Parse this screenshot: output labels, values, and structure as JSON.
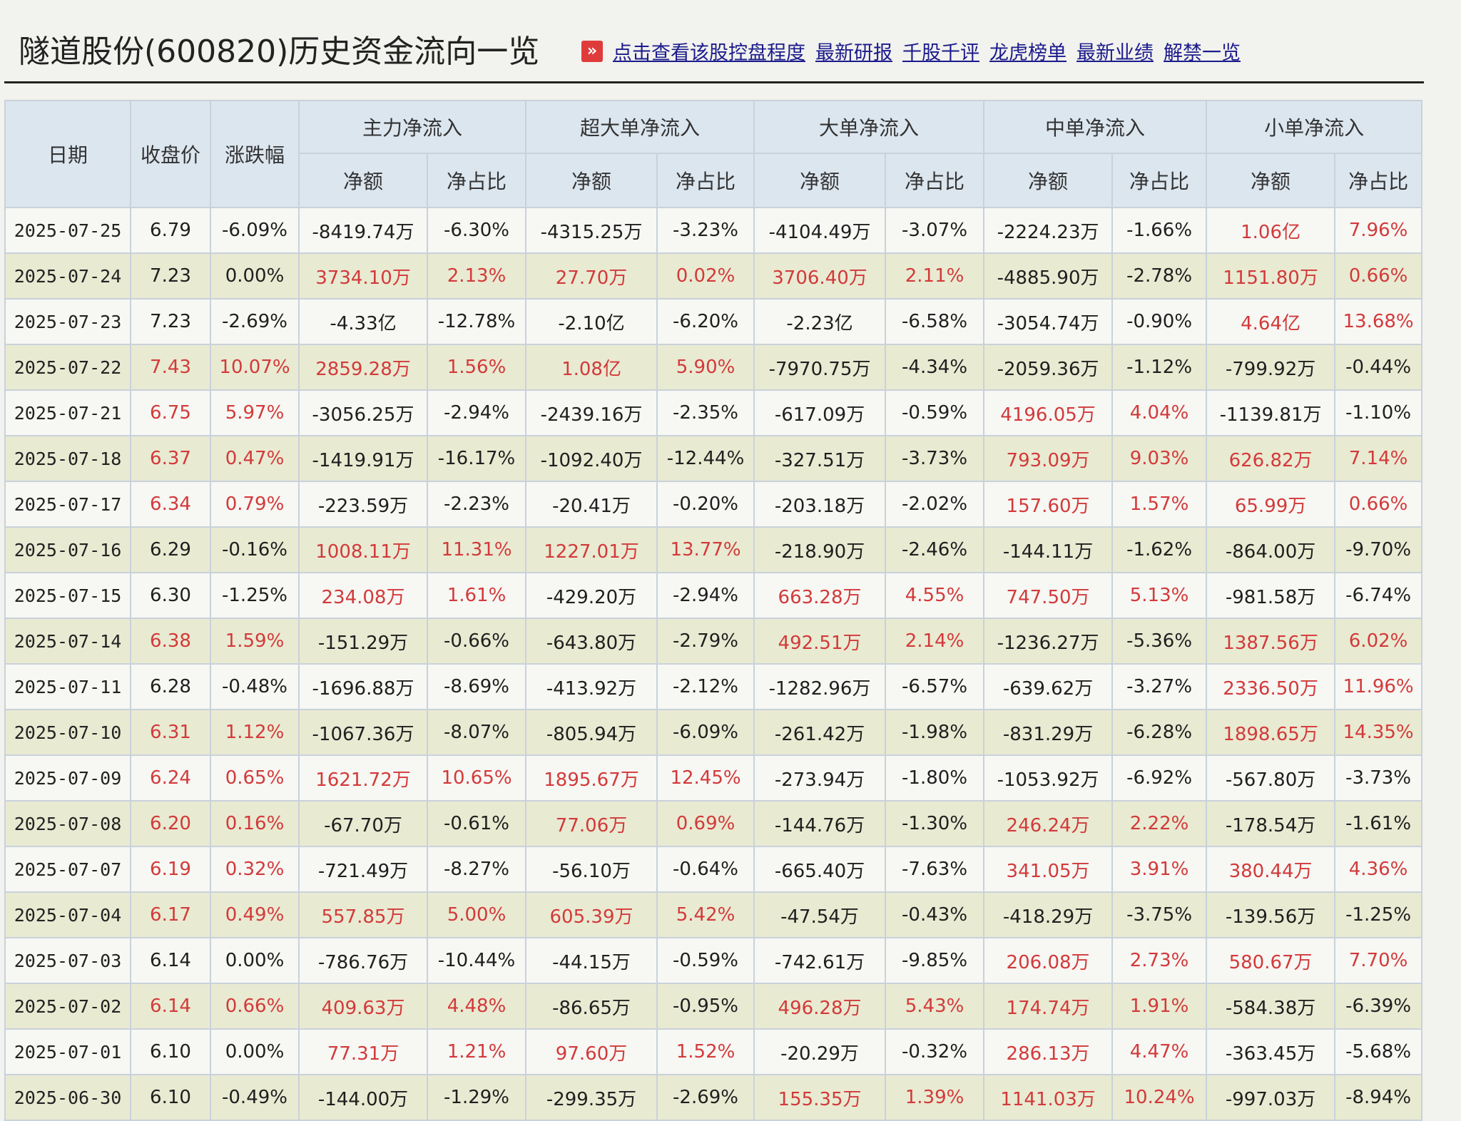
{
  "header": {
    "title": "隧道股份(600820)历史资金流向一览",
    "links": [
      "点击查看该股控盘程度",
      "最新研报",
      "千股千评",
      "龙虎榜单",
      "最新业绩",
      "解禁一览"
    ]
  },
  "table": {
    "group_headers": [
      "日期",
      "收盘价",
      "涨跌幅",
      "主力净流入",
      "超大单净流入",
      "大单净流入",
      "中单净流入",
      "小单净流入"
    ],
    "sub_headers": [
      "净额",
      "净占比",
      "净额",
      "净占比",
      "净额",
      "净占比",
      "净额",
      "净占比",
      "净额",
      "净占比"
    ],
    "colors": {
      "positive": "#d23a3a",
      "negative": "#1f1f1f"
    },
    "rows": [
      [
        "2025-07-25",
        "6.79",
        "-6.09%",
        "-8419.74万",
        "-6.30%",
        "-4315.25万",
        "-3.23%",
        "-4104.49万",
        "-3.07%",
        "-2224.23万",
        "-1.66%",
        "1.06亿",
        "7.96%"
      ],
      [
        "2025-07-24",
        "7.23",
        "0.00%",
        "3734.10万",
        "2.13%",
        "27.70万",
        "0.02%",
        "3706.40万",
        "2.11%",
        "-4885.90万",
        "-2.78%",
        "1151.80万",
        "0.66%"
      ],
      [
        "2025-07-23",
        "7.23",
        "-2.69%",
        "-4.33亿",
        "-12.78%",
        "-2.10亿",
        "-6.20%",
        "-2.23亿",
        "-6.58%",
        "-3054.74万",
        "-0.90%",
        "4.64亿",
        "13.68%"
      ],
      [
        "2025-07-22",
        "7.43",
        "10.07%",
        "2859.28万",
        "1.56%",
        "1.08亿",
        "5.90%",
        "-7970.75万",
        "-4.34%",
        "-2059.36万",
        "-1.12%",
        "-799.92万",
        "-0.44%"
      ],
      [
        "2025-07-21",
        "6.75",
        "5.97%",
        "-3056.25万",
        "-2.94%",
        "-2439.16万",
        "-2.35%",
        "-617.09万",
        "-0.59%",
        "4196.05万",
        "4.04%",
        "-1139.81万",
        "-1.10%"
      ],
      [
        "2025-07-18",
        "6.37",
        "0.47%",
        "-1419.91万",
        "-16.17%",
        "-1092.40万",
        "-12.44%",
        "-327.51万",
        "-3.73%",
        "793.09万",
        "9.03%",
        "626.82万",
        "7.14%"
      ],
      [
        "2025-07-17",
        "6.34",
        "0.79%",
        "-223.59万",
        "-2.23%",
        "-20.41万",
        "-0.20%",
        "-203.18万",
        "-2.02%",
        "157.60万",
        "1.57%",
        "65.99万",
        "0.66%"
      ],
      [
        "2025-07-16",
        "6.29",
        "-0.16%",
        "1008.11万",
        "11.31%",
        "1227.01万",
        "13.77%",
        "-218.90万",
        "-2.46%",
        "-144.11万",
        "-1.62%",
        "-864.00万",
        "-9.70%"
      ],
      [
        "2025-07-15",
        "6.30",
        "-1.25%",
        "234.08万",
        "1.61%",
        "-429.20万",
        "-2.94%",
        "663.28万",
        "4.55%",
        "747.50万",
        "5.13%",
        "-981.58万",
        "-6.74%"
      ],
      [
        "2025-07-14",
        "6.38",
        "1.59%",
        "-151.29万",
        "-0.66%",
        "-643.80万",
        "-2.79%",
        "492.51万",
        "2.14%",
        "-1236.27万",
        "-5.36%",
        "1387.56万",
        "6.02%"
      ],
      [
        "2025-07-11",
        "6.28",
        "-0.48%",
        "-1696.88万",
        "-8.69%",
        "-413.92万",
        "-2.12%",
        "-1282.96万",
        "-6.57%",
        "-639.62万",
        "-3.27%",
        "2336.50万",
        "11.96%"
      ],
      [
        "2025-07-10",
        "6.31",
        "1.12%",
        "-1067.36万",
        "-8.07%",
        "-805.94万",
        "-6.09%",
        "-261.42万",
        "-1.98%",
        "-831.29万",
        "-6.28%",
        "1898.65万",
        "14.35%"
      ],
      [
        "2025-07-09",
        "6.24",
        "0.65%",
        "1621.72万",
        "10.65%",
        "1895.67万",
        "12.45%",
        "-273.94万",
        "-1.80%",
        "-1053.92万",
        "-6.92%",
        "-567.80万",
        "-3.73%"
      ],
      [
        "2025-07-08",
        "6.20",
        "0.16%",
        "-67.70万",
        "-0.61%",
        "77.06万",
        "0.69%",
        "-144.76万",
        "-1.30%",
        "246.24万",
        "2.22%",
        "-178.54万",
        "-1.61%"
      ],
      [
        "2025-07-07",
        "6.19",
        "0.32%",
        "-721.49万",
        "-8.27%",
        "-56.10万",
        "-0.64%",
        "-665.40万",
        "-7.63%",
        "341.05万",
        "3.91%",
        "380.44万",
        "4.36%"
      ],
      [
        "2025-07-04",
        "6.17",
        "0.49%",
        "557.85万",
        "5.00%",
        "605.39万",
        "5.42%",
        "-47.54万",
        "-0.43%",
        "-418.29万",
        "-3.75%",
        "-139.56万",
        "-1.25%"
      ],
      [
        "2025-07-03",
        "6.14",
        "0.00%",
        "-786.76万",
        "-10.44%",
        "-44.15万",
        "-0.59%",
        "-742.61万",
        "-9.85%",
        "206.08万",
        "2.73%",
        "580.67万",
        "7.70%"
      ],
      [
        "2025-07-02",
        "6.14",
        "0.66%",
        "409.63万",
        "4.48%",
        "-86.65万",
        "-0.95%",
        "496.28万",
        "5.43%",
        "174.74万",
        "1.91%",
        "-584.38万",
        "-6.39%"
      ],
      [
        "2025-07-01",
        "6.10",
        "0.00%",
        "77.31万",
        "1.21%",
        "97.60万",
        "1.52%",
        "-20.29万",
        "-0.32%",
        "286.13万",
        "4.47%",
        "-363.45万",
        "-5.68%"
      ],
      [
        "2025-06-30",
        "6.10",
        "-0.49%",
        "-144.00万",
        "-1.29%",
        "-299.35万",
        "-2.69%",
        "155.35万",
        "1.39%",
        "1141.03万",
        "10.24%",
        "-997.03万",
        "-8.94%"
      ]
    ]
  }
}
